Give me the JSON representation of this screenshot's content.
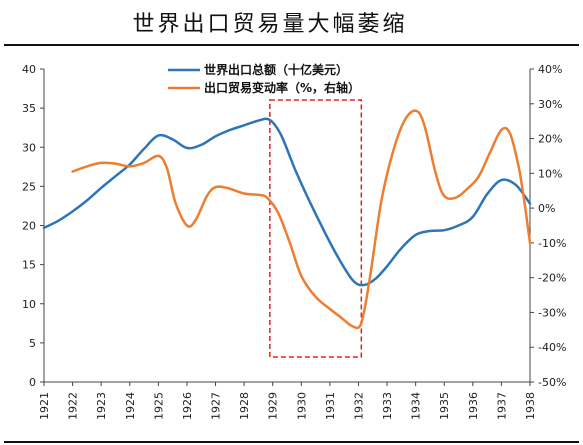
{
  "chart_data": {
    "type": "line",
    "title": "世界出口贸易量大幅萎缩",
    "x": [
      "1921",
      "1922",
      "1923",
      "1924",
      "1925",
      "1926",
      "1927",
      "1928",
      "1929",
      "1930",
      "1931",
      "1932",
      "1933",
      "1934",
      "1935",
      "1936",
      "1937",
      "1938"
    ],
    "y_left": {
      "ticks": [
        "0",
        "5",
        "10",
        "15",
        "20",
        "25",
        "30",
        "35",
        "40"
      ],
      "range": [
        0,
        40
      ]
    },
    "y_right": {
      "ticks": [
        "-50%",
        "-40%",
        "-30%",
        "-20%",
        "-10%",
        "0%",
        "10%",
        "20%",
        "30%",
        "40%"
      ],
      "range": [
        -50,
        40
      ],
      "unit": "%"
    },
    "series": [
      {
        "name": "世界出口总额（十亿美元）",
        "axis": "left",
        "color": "#2E75B6",
        "points": [
          [
            1921.0,
            19.7
          ],
          [
            1921.5,
            20.6
          ],
          [
            1922.0,
            21.8
          ],
          [
            1922.5,
            23.2
          ],
          [
            1923.0,
            24.8
          ],
          [
            1923.5,
            26.3
          ],
          [
            1924.0,
            27.8
          ],
          [
            1924.5,
            29.8
          ],
          [
            1925.0,
            31.5
          ],
          [
            1925.5,
            31.0
          ],
          [
            1926.0,
            29.9
          ],
          [
            1926.5,
            30.3
          ],
          [
            1927.0,
            31.4
          ],
          [
            1927.5,
            32.2
          ],
          [
            1928.0,
            32.8
          ],
          [
            1928.5,
            33.4
          ],
          [
            1928.9,
            33.5
          ],
          [
            1929.3,
            31.5
          ],
          [
            1929.8,
            27.0
          ],
          [
            1930.5,
            21.5
          ],
          [
            1931.2,
            16.5
          ],
          [
            1931.8,
            13.0
          ],
          [
            1932.2,
            12.4
          ],
          [
            1932.6,
            13.2
          ],
          [
            1933.0,
            14.8
          ],
          [
            1933.5,
            17.1
          ],
          [
            1934.0,
            18.8
          ],
          [
            1934.5,
            19.3
          ],
          [
            1935.0,
            19.4
          ],
          [
            1935.5,
            20.0
          ],
          [
            1936.0,
            21.1
          ],
          [
            1936.5,
            24.0
          ],
          [
            1937.0,
            25.8
          ],
          [
            1937.5,
            25.2
          ],
          [
            1938.0,
            22.8
          ]
        ]
      },
      {
        "name": "出口贸易变动率（%，右轴）",
        "axis": "right",
        "color": "#ED7D31",
        "points": [
          [
            1922.0,
            10.5
          ],
          [
            1922.5,
            12.0
          ],
          [
            1923.0,
            13.0
          ],
          [
            1923.5,
            12.8
          ],
          [
            1924.0,
            12.0
          ],
          [
            1924.5,
            13.0
          ],
          [
            1925.0,
            15.0
          ],
          [
            1925.3,
            11.5
          ],
          [
            1925.6,
            1.5
          ],
          [
            1926.0,
            -5.0
          ],
          [
            1926.3,
            -3.5
          ],
          [
            1926.7,
            3.5
          ],
          [
            1927.0,
            6.0
          ],
          [
            1927.4,
            5.8
          ],
          [
            1928.0,
            4.2
          ],
          [
            1928.5,
            3.8
          ],
          [
            1928.8,
            3.0
          ],
          [
            1929.2,
            -1.5
          ],
          [
            1929.6,
            -10.0
          ],
          [
            1930.0,
            -19.5
          ],
          [
            1930.5,
            -25.5
          ],
          [
            1931.0,
            -29.0
          ],
          [
            1931.4,
            -31.5
          ],
          [
            1931.8,
            -34.0
          ],
          [
            1932.1,
            -33.0
          ],
          [
            1932.4,
            -20.0
          ],
          [
            1932.8,
            2.0
          ],
          [
            1933.2,
            16.0
          ],
          [
            1933.6,
            25.0
          ],
          [
            1934.0,
            28.0
          ],
          [
            1934.3,
            24.0
          ],
          [
            1934.7,
            10.0
          ],
          [
            1935.0,
            3.5
          ],
          [
            1935.4,
            3.0
          ],
          [
            1935.8,
            5.5
          ],
          [
            1936.2,
            9.0
          ],
          [
            1936.6,
            16.0
          ],
          [
            1937.0,
            22.5
          ],
          [
            1937.3,
            21.5
          ],
          [
            1937.6,
            12.0
          ],
          [
            1937.8,
            2.0
          ],
          [
            1938.0,
            -10.0
          ]
        ]
      }
    ],
    "annotation": {
      "type": "dashed-rectangle",
      "color": "#E02020",
      "x_from": 1928.9,
      "x_to": 1932.1
    }
  }
}
